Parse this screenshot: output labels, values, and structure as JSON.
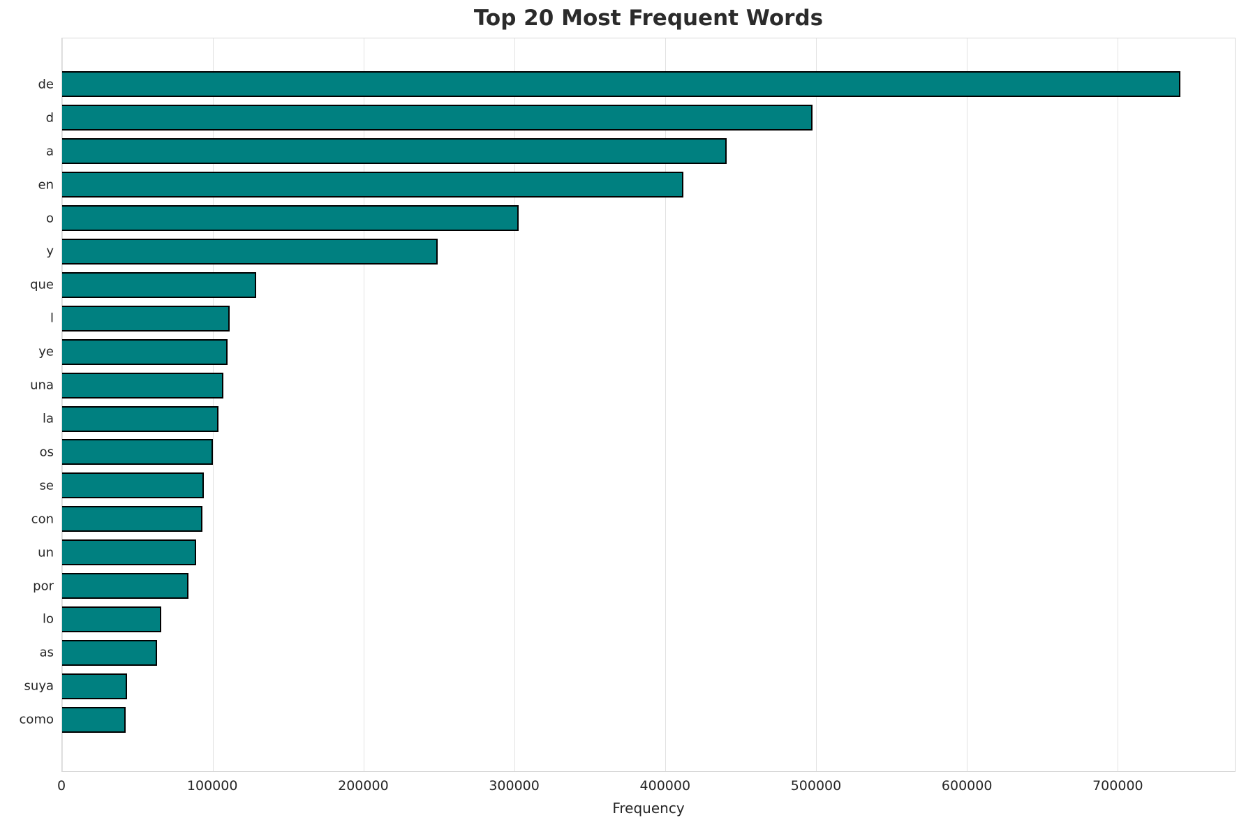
{
  "title": "Top 20 Most Frequent Words",
  "xlabel": "Frequency",
  "chart_data": {
    "type": "bar",
    "orientation": "horizontal",
    "title": "Top 20 Most Frequent Words",
    "xlabel": "Frequency",
    "ylabel": "",
    "categories": [
      "de",
      "d",
      "a",
      "en",
      "o",
      "y",
      "que",
      "l",
      "ye",
      "una",
      "la",
      "os",
      "se",
      "con",
      "un",
      "por",
      "lo",
      "as",
      "suya",
      "como"
    ],
    "values": [
      741000,
      497000,
      440000,
      411000,
      302000,
      248000,
      128000,
      110000,
      109000,
      106000,
      103000,
      99000,
      93000,
      92000,
      88000,
      83000,
      65000,
      62000,
      42000,
      41000
    ],
    "xlim": [
      0,
      778000
    ],
    "xticks": [
      0,
      100000,
      200000,
      300000,
      400000,
      500000,
      600000,
      700000
    ],
    "xtick_labels": [
      "0",
      "100000",
      "200000",
      "300000",
      "400000",
      "500000",
      "600000",
      "700000"
    ],
    "grid": true,
    "legend": "none",
    "bar_color": "#008080",
    "bar_edge_color": "#000000"
  }
}
